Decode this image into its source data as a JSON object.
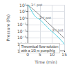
{
  "chart_data": {
    "type": "line",
    "xlabel": "Time (min)",
    "ylabel": "Pressure (Pa)",
    "log": "y",
    "grid": true,
    "xlim": [
      0,
      15
    ],
    "xticks": [
      0,
      5,
      10,
      15
    ],
    "ylim": [
      1e-05,
      100
    ],
    "yticks": [
      {
        "value": 1e-05,
        "label": "10⁻⁵"
      },
      {
        "value": 0.0001,
        "label": "10⁻⁴"
      },
      {
        "value": 0.001,
        "label": "10⁻³"
      },
      {
        "value": 0.01,
        "label": "10⁻²"
      },
      {
        "value": 0.1,
        "label": "10⁻¹"
      },
      {
        "value": 1,
        "label": "10⁰"
      },
      {
        "value": 10,
        "label": "10¹"
      },
      {
        "value": 100,
        "label": "10²"
      }
    ],
    "series": [
      {
        "color": "#888888",
        "line_style": "solid",
        "x": [
          0,
          0.5,
          1.0,
          1.5,
          2.0,
          3.0,
          4.0,
          5.0,
          6.0,
          7.0,
          8.0,
          9.0,
          10.0,
          11.0,
          12.0,
          13.0,
          14.0,
          15.0
        ],
        "values": [
          100,
          70,
          50,
          35,
          24,
          12,
          5.5,
          2.5,
          1.1,
          0.5,
          0.22,
          0.1,
          0.045,
          0.02,
          0.009,
          0.004,
          0.0018,
          0.0008
        ]
      },
      {
        "color": "#4dd0e1",
        "line_style": "solid",
        "x": [
          0,
          0.2,
          0.5,
          0.8,
          1.1,
          1.4,
          1.7,
          2.0,
          2.3,
          2.6,
          2.9,
          3.2,
          3.5,
          3.8,
          4.1,
          4.4,
          4.7,
          5.0,
          5.4,
          5.8,
          6.2,
          6.7,
          7.2,
          7.8,
          8.4,
          9.0,
          9.6,
          10.2,
          10.8,
          11.4,
          12.0,
          12.6,
          13.2,
          13.8,
          14.4,
          15.0
        ],
        "values": [
          100,
          85,
          60,
          40,
          25,
          16,
          10,
          6.5,
          4.2,
          2.8,
          2.0,
          1.5,
          1.2,
          1.0,
          0.85,
          0.75,
          0.65,
          0.55,
          0.42,
          0.3,
          0.2,
          0.13,
          0.085,
          0.05,
          0.03,
          0.018,
          0.011,
          0.007,
          0.0045,
          0.0028,
          0.0017,
          0.001,
          0.0006,
          0.00035,
          0.0002,
          0.0001
        ]
      }
    ],
    "annotations": [
      {
        "text": "1ˢᵗ pot",
        "x": 1.4,
        "y": 50
      },
      {
        "text": "2ⁿᵈ pot",
        "x": 4.8,
        "y": 0.6
      },
      {
        "text": "3ʳᵈ pot",
        "x": 10.0,
        "y": 0.008
      },
      {
        "text": "Theoretical flow-solution\nwith a 1/3 m pump/h/g"
      }
    ]
  }
}
